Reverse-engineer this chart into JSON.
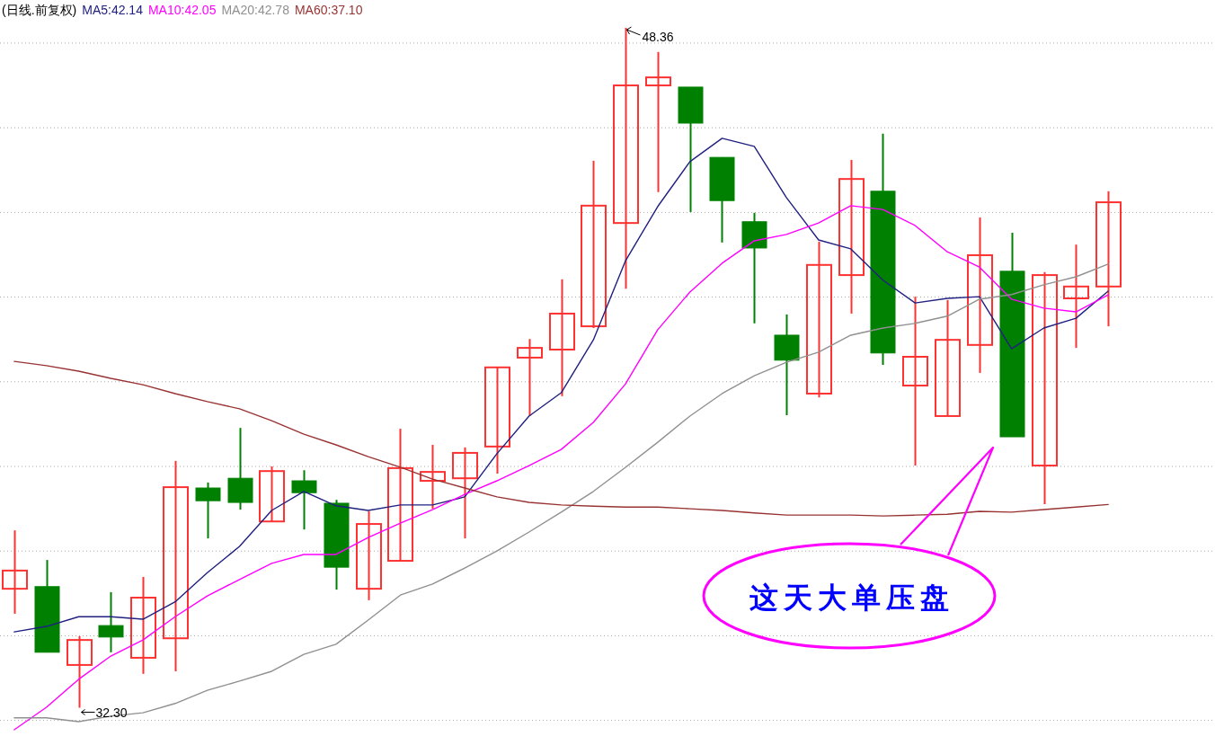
{
  "chart_data": {
    "type": "candlestick",
    "title": "(日线.前复权)",
    "categories": [
      null,
      null,
      null,
      null,
      null,
      null,
      null,
      null,
      null,
      null,
      null,
      null,
      null,
      null,
      null,
      null,
      null,
      null,
      null,
      null,
      null,
      null,
      null,
      null,
      null,
      null,
      null,
      null,
      null,
      null,
      null,
      null,
      null,
      null,
      null
    ],
    "ohlc": [
      [
        35.11,
        36.49,
        34.52,
        35.54
      ],
      [
        35.16,
        35.79,
        33.61,
        33.61
      ],
      [
        33.31,
        33.99,
        32.3,
        33.9
      ],
      [
        34.24,
        35.03,
        33.61,
        33.97
      ],
      [
        33.48,
        35.39,
        33.1,
        34.9
      ],
      [
        33.94,
        38.13,
        33.16,
        37.51
      ],
      [
        37.49,
        37.62,
        36.3,
        37.19
      ],
      [
        37.72,
        38.91,
        36.98,
        37.15
      ],
      [
        36.7,
        38.0,
        36.7,
        37.89
      ],
      [
        37.66,
        37.91,
        36.51,
        37.38
      ],
      [
        37.13,
        37.21,
        35.09,
        35.62
      ],
      [
        35.11,
        36.94,
        34.84,
        36.64
      ],
      [
        35.77,
        38.89,
        35.77,
        37.96
      ],
      [
        37.66,
        38.51,
        37.0,
        37.87
      ],
      [
        37.72,
        38.45,
        36.3,
        38.32
      ],
      [
        38.47,
        40.34,
        37.83,
        40.34
      ],
      [
        40.57,
        41.01,
        39.19,
        40.8
      ],
      [
        40.76,
        42.42,
        39.66,
        41.61
      ],
      [
        41.31,
        45.22,
        41.27,
        44.16
      ],
      [
        43.75,
        48.36,
        42.2,
        47.0
      ],
      [
        47.0,
        47.79,
        44.48,
        47.19
      ],
      [
        46.96,
        46.96,
        44.01,
        46.11
      ],
      [
        45.3,
        45.3,
        43.29,
        44.28
      ],
      [
        43.78,
        43.99,
        41.38,
        43.16
      ],
      [
        41.1,
        41.59,
        39.21,
        40.51
      ],
      [
        39.72,
        43.31,
        39.63,
        42.76
      ],
      [
        42.52,
        45.24,
        41.61,
        44.79
      ],
      [
        44.5,
        45.86,
        40.4,
        40.68
      ],
      [
        39.91,
        42.01,
        38.02,
        40.59
      ],
      [
        39.19,
        41.93,
        39.19,
        40.99
      ],
      [
        40.87,
        43.88,
        40.21,
        42.99
      ],
      [
        42.61,
        43.52,
        38.7,
        38.7
      ],
      [
        38.02,
        42.59,
        37.11,
        42.52
      ],
      [
        41.97,
        43.24,
        40.8,
        42.25
      ],
      [
        42.25,
        44.5,
        41.31,
        44.24
      ]
    ],
    "colors": [
      "#ff3232",
      "#008000",
      "#ff3232",
      "#008000",
      "#ff3232",
      "#ff3232",
      "#008000",
      "#008000",
      "#ff3232",
      "#008000",
      "#008000",
      "#ff3232",
      "#ff3232",
      "#ff3232",
      "#ff3232",
      "#ff3232",
      "#ff3232",
      "#ff3232",
      "#ff3232",
      "#ff3232",
      "#ff3232",
      "#008000",
      "#008000",
      "#008000",
      "#008000",
      "#ff3232",
      "#ff3232",
      "#008000",
      "#ff3232",
      "#ff3232",
      "#ff3232",
      "#008000",
      "#ff3232",
      "#ff3232",
      "#ff3232"
    ],
    "series": [
      {
        "name": "MA5:42.14",
        "type": "line",
        "color": "#202080",
        "values": [
          34.09,
          34.22,
          34.45,
          34.45,
          34.39,
          34.8,
          35.49,
          36.11,
          36.96,
          37.41,
          37.07,
          36.96,
          37.09,
          37.09,
          37.28,
          38.3,
          39.19,
          39.74,
          40.99,
          42.86,
          44.14,
          45.2,
          45.75,
          45.56,
          44.35,
          43.35,
          43.14,
          42.4,
          41.86,
          41.97,
          42.01,
          40.78,
          41.27,
          41.5,
          42.14
        ]
      },
      {
        "name": "MA10:42.05",
        "type": "line",
        "color": "#ff00ff",
        "values": [
          31.78,
          32.31,
          32.97,
          33.52,
          33.9,
          34.45,
          34.94,
          35.33,
          35.71,
          35.92,
          35.92,
          36.32,
          36.66,
          36.98,
          37.34,
          37.66,
          38.02,
          38.4,
          39.04,
          39.95,
          41.23,
          42.12,
          42.8,
          43.33,
          43.48,
          43.75,
          44.16,
          44.07,
          43.69,
          43.07,
          42.71,
          41.95,
          41.74,
          41.65,
          42.05
        ]
      },
      {
        "name": "MA20:42.78",
        "type": "line",
        "color": "#909090",
        "values": [
          32.06,
          32.06,
          31.97,
          32.1,
          32.18,
          32.4,
          32.71,
          32.93,
          33.16,
          33.56,
          33.8,
          34.37,
          34.96,
          35.22,
          35.6,
          36.0,
          36.45,
          36.92,
          37.41,
          37.98,
          38.57,
          39.19,
          39.72,
          40.14,
          40.46,
          40.7,
          41.1,
          41.27,
          41.38,
          41.55,
          41.95,
          42.06,
          42.29,
          42.48,
          42.78
        ]
      },
      {
        "name": "MA60:37.10",
        "type": "line",
        "color": "#993333",
        "values": [
          40.48,
          40.38,
          40.25,
          40.08,
          39.93,
          39.72,
          39.53,
          39.36,
          39.08,
          38.76,
          38.51,
          38.23,
          37.98,
          37.7,
          37.49,
          37.28,
          37.15,
          37.09,
          37.06,
          37.04,
          37.04,
          37.0,
          36.96,
          36.9,
          36.85,
          36.85,
          36.85,
          36.83,
          36.85,
          36.87,
          36.94,
          36.92,
          36.98,
          37.04,
          37.1
        ]
      }
    ],
    "yticks": [
      {
        "value": 32,
        "label": null
      },
      {
        "value": 34,
        "label": null
      },
      {
        "value": 36,
        "label": null
      },
      {
        "value": 38,
        "label": null
      },
      {
        "value": 40,
        "label": null
      },
      {
        "value": 42,
        "label": null
      },
      {
        "value": 44,
        "label": null
      },
      {
        "value": 46,
        "label": null
      },
      {
        "value": 48,
        "label": null
      }
    ],
    "grid": "y",
    "legend": "top left",
    "annotations": [
      "48.36",
      "32.30",
      "这天大单压盘"
    ]
  }
}
